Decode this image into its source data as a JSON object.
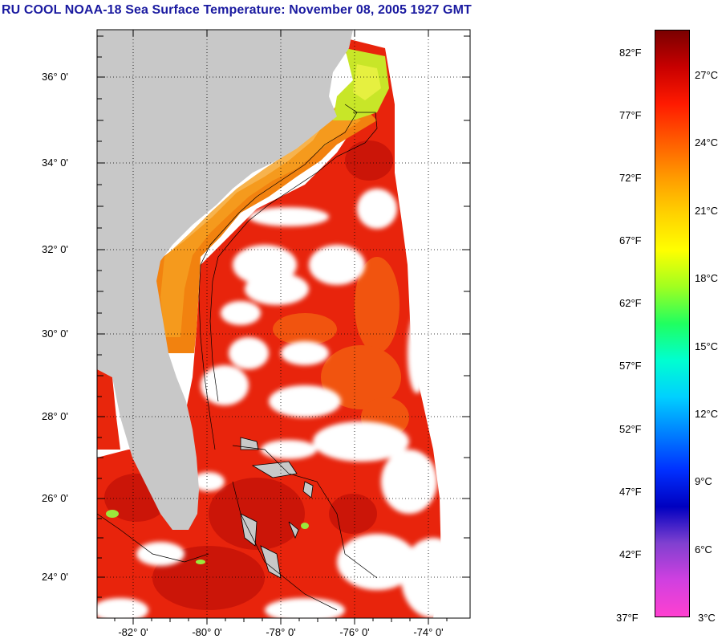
{
  "title": "RU COOL  NOAA-18  Sea Surface Temperature:  November 08, 2005 1927 GMT",
  "map": {
    "latitude_labels": [
      "36° 0'",
      "34° 0'",
      "32° 0'",
      "30° 0'",
      "28° 0'",
      "26° 0'",
      "24° 0'"
    ],
    "longitude_labels": [
      "-82° 0'",
      "-80° 0'",
      "-78° 0'",
      "-76° 0'",
      "-74° 0'"
    ],
    "land_color": "#c8c8c8",
    "cloud_color": "#ffffff"
  },
  "colorbar": {
    "fahrenheit_labels": [
      "82°F",
      "77°F",
      "72°F",
      "67°F",
      "62°F",
      "57°F",
      "52°F",
      "47°F",
      "42°F",
      "37°F"
    ],
    "celsius_labels": [
      "27°C",
      "24°C",
      "21°C",
      "18°C",
      "15°C",
      "12°C",
      "9°C",
      "6°C",
      "3°C"
    ],
    "gradient_colors": [
      "#7a0000",
      "#c80000",
      "#ff1a00",
      "#ff5a00",
      "#ff9a00",
      "#ffd200",
      "#ffff00",
      "#a0ff20",
      "#20ff60",
      "#00ffd0",
      "#00d0ff",
      "#0080ff",
      "#0030ff",
      "#0000c0",
      "#8040d0",
      "#d040e0",
      "#ff40d0"
    ]
  }
}
